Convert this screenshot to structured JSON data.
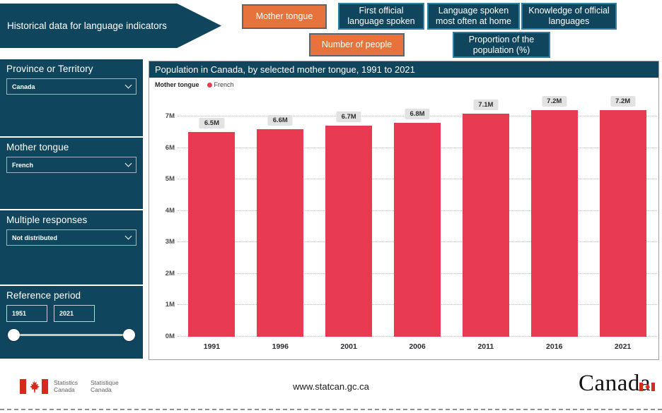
{
  "banner": {
    "title": "Historical data for language indicators"
  },
  "nav": {
    "row1": [
      {
        "label": "Mother tongue",
        "active": true
      },
      {
        "label": "First official language spoken",
        "active": false
      },
      {
        "label": "Language spoken most often at home",
        "active": false
      },
      {
        "label": "Knowledge of official languages",
        "active": false
      }
    ],
    "row2": [
      {
        "label": "Number of people",
        "active": true
      },
      {
        "label": "Proportion of the population (%)",
        "active": false
      }
    ]
  },
  "sidebar": {
    "filters": [
      {
        "label": "Province or Territory",
        "value": "Canada"
      },
      {
        "label": "Mother tongue",
        "value": "French"
      },
      {
        "label": "Multiple responses",
        "value": "Not distributed"
      }
    ],
    "reference_period": {
      "label": "Reference period",
      "start": "1951",
      "end": "2021"
    }
  },
  "chart": {
    "title": "Population in Canada, by selected mother tongue, 1991 to 2021",
    "legend_label": "Mother tongue",
    "legend_series": "French"
  },
  "chart_data": {
    "type": "bar",
    "title": "Population in Canada, by selected mother tongue, 1991 to 2021",
    "series_name": "French",
    "categories": [
      "1991",
      "1996",
      "2001",
      "2006",
      "2011",
      "2016",
      "2021"
    ],
    "values": [
      6.5,
      6.6,
      6.7,
      6.8,
      7.1,
      7.2,
      7.2
    ],
    "data_labels": [
      "6.5M",
      "6.6M",
      "6.7M",
      "6.8M",
      "7.1M",
      "7.2M",
      "7.2M"
    ],
    "ylabel_ticks": [
      "0M",
      "1M",
      "2M",
      "3M",
      "4M",
      "5M",
      "6M",
      "7M"
    ],
    "ylim": [
      0,
      7.583
    ],
    "grid": "dotted",
    "legend_position": "top-left",
    "bar_color": "#E83B52"
  },
  "footer": {
    "brand_en_line1": "Statistics",
    "brand_en_line2": "Canada",
    "brand_fr_line1": "Statistique",
    "brand_fr_line2": "Canada",
    "url": "www.statcan.gc.ca",
    "wordmark": "Canada"
  },
  "colors": {
    "teal": "#10455E",
    "orange": "#E8723C",
    "teal_button_border": "#2F7FA6",
    "orange_button_border": "#5E6468",
    "bar_red": "#E83B52",
    "label_pill_bg": "#E2E2E2"
  }
}
